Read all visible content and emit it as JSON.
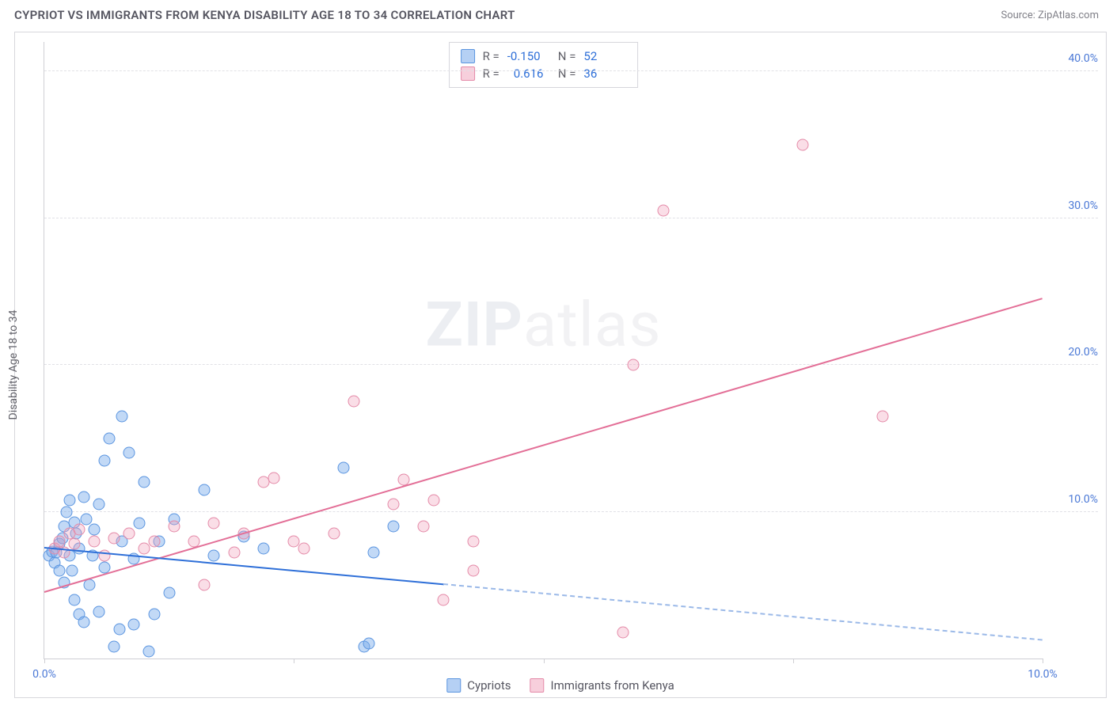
{
  "header": {
    "title": "CYPRIOT VS IMMIGRANTS FROM KENYA DISABILITY AGE 18 TO 34 CORRELATION CHART",
    "source_prefix": "Source: ",
    "source_name": "ZipAtlas.com"
  },
  "watermark": {
    "bold": "ZIP",
    "rest": "atlas"
  },
  "chart": {
    "type": "scatter",
    "ylabel": "Disability Age 18 to 34",
    "background_color": "#ffffff",
    "grid_color": "#e1e1e6",
    "axis_color": "#cfcfd4",
    "xlim": [
      0,
      10
    ],
    "ylim": [
      0,
      42
    ],
    "xticks": [
      {
        "v": 0,
        "label": "0.0%"
      },
      {
        "v": 2.5,
        "label": ""
      },
      {
        "v": 5.0,
        "label": ""
      },
      {
        "v": 7.5,
        "label": ""
      },
      {
        "v": 10.0,
        "label": "10.0%"
      }
    ],
    "yticks": [
      {
        "v": 10,
        "label": "10.0%"
      },
      {
        "v": 20,
        "label": "20.0%"
      },
      {
        "v": 30,
        "label": "30.0%"
      },
      {
        "v": 40,
        "label": "40.0%"
      }
    ],
    "series": [
      {
        "key": "cypriots",
        "label": "Cypriots",
        "color_fill": "rgba(120,170,235,0.45)",
        "color_stroke": "#5b95e0",
        "r_label": "R =",
        "r_value": "-0.150",
        "n_label": "N =",
        "n_value": "52",
        "trend": {
          "x1": 0,
          "y1": 7.5,
          "x2": 4.0,
          "y2": 5.0,
          "color": "#2e6fd8",
          "solid": true
        },
        "trend_ext": {
          "x1": 4.0,
          "y1": 5.0,
          "x2": 10.0,
          "y2": 1.2,
          "color": "#9bb9e8",
          "dashed": true
        },
        "points": [
          [
            0.05,
            7.0
          ],
          [
            0.08,
            7.3
          ],
          [
            0.1,
            6.5
          ],
          [
            0.12,
            7.2
          ],
          [
            0.15,
            6.0
          ],
          [
            0.15,
            7.8
          ],
          [
            0.18,
            8.2
          ],
          [
            0.2,
            5.2
          ],
          [
            0.2,
            9.0
          ],
          [
            0.22,
            10.0
          ],
          [
            0.25,
            7.0
          ],
          [
            0.25,
            10.8
          ],
          [
            0.28,
            6.0
          ],
          [
            0.3,
            9.3
          ],
          [
            0.3,
            4.0
          ],
          [
            0.32,
            8.5
          ],
          [
            0.35,
            3.0
          ],
          [
            0.35,
            7.5
          ],
          [
            0.4,
            2.5
          ],
          [
            0.4,
            11.0
          ],
          [
            0.42,
            9.5
          ],
          [
            0.45,
            5.0
          ],
          [
            0.48,
            7.0
          ],
          [
            0.5,
            8.8
          ],
          [
            0.55,
            10.5
          ],
          [
            0.55,
            3.2
          ],
          [
            0.6,
            13.5
          ],
          [
            0.65,
            15.0
          ],
          [
            0.7,
            0.8
          ],
          [
            0.75,
            2.0
          ],
          [
            0.78,
            8.0
          ],
          [
            0.78,
            16.5
          ],
          [
            0.85,
            14.0
          ],
          [
            0.9,
            2.3
          ],
          [
            0.95,
            9.2
          ],
          [
            1.0,
            12.0
          ],
          [
            1.05,
            0.5
          ],
          [
            1.1,
            3.0
          ],
          [
            1.15,
            8.0
          ],
          [
            1.25,
            4.5
          ],
          [
            1.3,
            9.5
          ],
          [
            1.6,
            11.5
          ],
          [
            1.7,
            7.0
          ],
          [
            2.0,
            8.3
          ],
          [
            2.2,
            7.5
          ],
          [
            3.0,
            13.0
          ],
          [
            3.2,
            0.8
          ],
          [
            3.25,
            1.0
          ],
          [
            3.3,
            7.2
          ],
          [
            3.5,
            9.0
          ],
          [
            0.6,
            6.2
          ],
          [
            0.9,
            6.8
          ]
        ]
      },
      {
        "key": "kenya",
        "label": "Immigrants from Kenya",
        "color_fill": "rgba(240,160,185,0.35)",
        "color_stroke": "#e48aa8",
        "r_label": "R =",
        "r_value": "0.616",
        "n_label": "N =",
        "n_value": "36",
        "trend": {
          "x1": 0,
          "y1": 4.5,
          "x2": 10.0,
          "y2": 24.5,
          "color": "#e36f97",
          "solid": true
        },
        "points": [
          [
            0.1,
            7.5
          ],
          [
            0.15,
            8.0
          ],
          [
            0.2,
            7.2
          ],
          [
            0.25,
            8.5
          ],
          [
            0.3,
            7.8
          ],
          [
            0.35,
            8.8
          ],
          [
            0.5,
            8.0
          ],
          [
            0.6,
            7.0
          ],
          [
            0.7,
            8.2
          ],
          [
            0.85,
            8.5
          ],
          [
            1.0,
            7.5
          ],
          [
            1.1,
            8.0
          ],
          [
            1.3,
            9.0
          ],
          [
            1.5,
            8.0
          ],
          [
            1.6,
            5.0
          ],
          [
            1.7,
            9.2
          ],
          [
            1.9,
            7.2
          ],
          [
            2.0,
            8.5
          ],
          [
            2.2,
            12.0
          ],
          [
            2.3,
            12.3
          ],
          [
            2.5,
            8.0
          ],
          [
            2.6,
            7.5
          ],
          [
            2.9,
            8.5
          ],
          [
            3.1,
            17.5
          ],
          [
            3.5,
            10.5
          ],
          [
            3.6,
            12.2
          ],
          [
            3.8,
            9.0
          ],
          [
            3.9,
            10.8
          ],
          [
            4.0,
            4.0
          ],
          [
            4.3,
            8.0
          ],
          [
            4.3,
            6.0
          ],
          [
            5.8,
            1.8
          ],
          [
            5.9,
            20.0
          ],
          [
            6.2,
            30.5
          ],
          [
            7.6,
            35.0
          ],
          [
            8.4,
            16.5
          ]
        ]
      }
    ]
  },
  "legend": {
    "items": [
      {
        "swatch": "blue",
        "label": "Cypriots"
      },
      {
        "swatch": "pink",
        "label": "Immigrants from Kenya"
      }
    ]
  }
}
